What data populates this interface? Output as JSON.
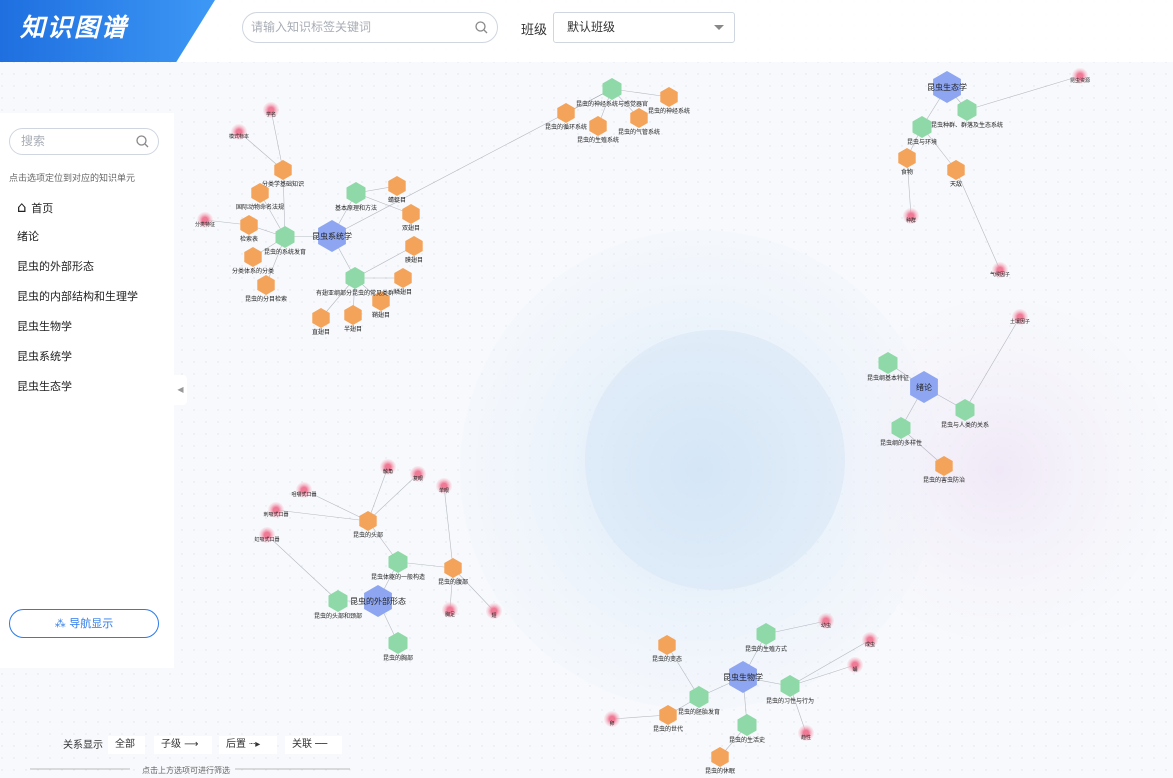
{
  "header": {
    "logo": "知识图谱",
    "search_placeholder": "请输入知识标签关键词",
    "class_label": "班级",
    "class_value": "默认班级"
  },
  "sidebar": {
    "search_placeholder": "搜索",
    "hint": "点击选项定位到对应的知识单元",
    "menu": [
      "首页",
      "绪论",
      "昆虫的外部形态",
      "昆虫的内部结构和生理学",
      "昆虫生物学",
      "昆虫系统学",
      "昆虫生态学"
    ],
    "nav_button": "导航显示"
  },
  "filter": {
    "label": "关系显示",
    "options": [
      "全部",
      "子级",
      "后置",
      "关联"
    ],
    "hint": "点击上方选项可进行筛选"
  },
  "graph": {
    "hubs": [
      "昆虫系统学",
      "昆虫生态学",
      "绪论",
      "昆虫的外部形态",
      "昆虫生物学"
    ],
    "chapters": [
      "基本原理和方法",
      "有翅亚纲部分昆虫的常见类群",
      "昆虫的系统发育",
      "昆虫与人类的关系",
      "昆虫纲基本特征",
      "昆虫纲的多样性",
      "昆虫体躯的一般构造",
      "昆虫的胸部",
      "昆虫的头部和颈部",
      "昆虫的生殖方式",
      "昆虫的习性与行为",
      "昆虫的生活史",
      "昆虫的胚胎发育",
      "昆虫的神经系统与感觉器官",
      "昆虫种群、群落及生态系统",
      "昆虫与环境"
    ],
    "sections": [
      "分类学基础知识",
      "国际动物命名法规",
      "检索表",
      "分类体系的分类",
      "昆虫的分目检索",
      "直翅目",
      "半翅目",
      "鞘翅目",
      "鳞翅目",
      "膜翅目",
      "双翅目",
      "蜻蜓目",
      "昆虫的腹部",
      "昆虫的头部",
      "昆虫的气管系统",
      "昆虫的循环系统",
      "昆虫的神经系统",
      "昆虫的生殖系统",
      "食物",
      "天敌",
      "昆虫的害虫防治",
      "昆虫的变态",
      "昆虫的世代",
      "昆虫的休眠"
    ],
    "points": [
      "复眼",
      "触角",
      "单眼",
      "咀嚼式口器",
      "刺吸式口器",
      "虹吸式口器",
      "胸足",
      "翅",
      "种群",
      "卵",
      "幼虫",
      "蛹",
      "成虫",
      "趋性",
      "学名",
      "模式标本",
      "分类特征",
      "气候因子",
      "土壤因子",
      "昆虫资源"
    ]
  }
}
